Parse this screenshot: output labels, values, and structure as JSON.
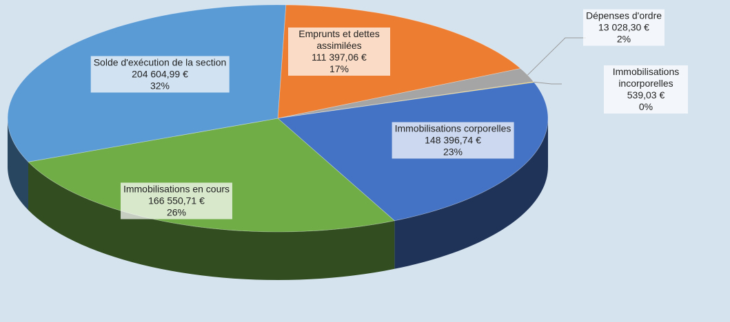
{
  "chart_data": {
    "type": "pie3d",
    "categories": [
      "Emprunts et dettes assimilées",
      "Dépenses d'ordre",
      "Immobilisations incorporelles",
      "Immobilisations corporelles",
      "Immobilisations en cours",
      "Solde d'exécution de la section"
    ],
    "values": [
      111397.06,
      13028.3,
      539.03,
      148396.74,
      166550.71,
      204604.99
    ],
    "value_labels": [
      "111 397,06 €",
      "13 028,30 €",
      "539,03 €",
      "148 396,74 €",
      "166 550,71 €",
      "204 604,99 €"
    ],
    "percent_labels": [
      "17%",
      "2%",
      "0%",
      "23%",
      "26%",
      "32%"
    ],
    "colors": [
      "#ed7d31",
      "#a5a5a5",
      "#ffc000",
      "#4472c4",
      "#70ad47",
      "#5b9bd5"
    ]
  }
}
